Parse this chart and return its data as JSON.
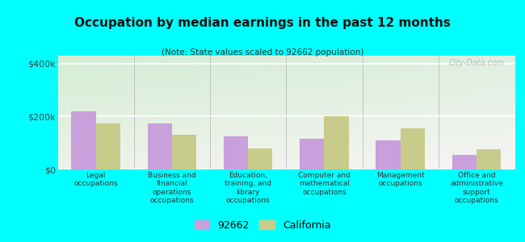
{
  "title": "Occupation by median earnings in the past 12 months",
  "subtitle": "(Note: State values scaled to 92662 population)",
  "categories": [
    "Legal\noccupations",
    "Business and\nfinancial\noperations\noccupations",
    "Education,\ntraining, and\nlibrary\noccupations",
    "Computer and\nmathematical\noccupations",
    "Management\noccupations",
    "Office and\nadministrative\nsupport\noccupations"
  ],
  "values_92662": [
    220000,
    175000,
    125000,
    115000,
    110000,
    55000
  ],
  "values_california": [
    175000,
    130000,
    80000,
    200000,
    155000,
    75000
  ],
  "color_92662": "#c9a0dc",
  "color_california": "#c8cc8a",
  "ylim": [
    0,
    430000
  ],
  "yticks": [
    0,
    200000,
    400000
  ],
  "ytick_labels": [
    "$0",
    "$200k",
    "$400k"
  ],
  "background_color": "#00ffff",
  "legend_label_92662": "92662",
  "legend_label_california": "California",
  "watermark": "City-Data.com"
}
